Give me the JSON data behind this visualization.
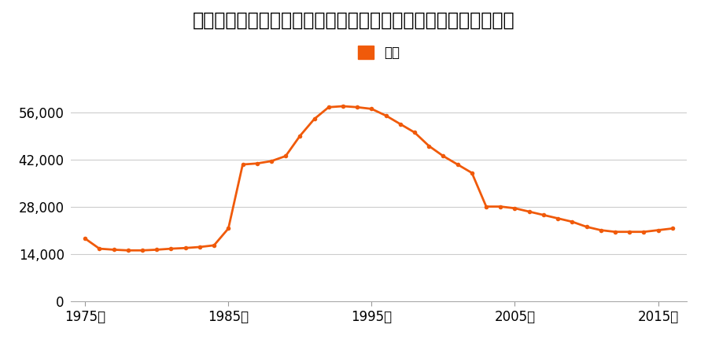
{
  "title": "茨城県日立市滑川町字祝サキ１９４３番１ほか１０筆の地価推移",
  "legend_label": "価格",
  "line_color": "#f05a0a",
  "marker_color": "#f05a0a",
  "bg_color": "#ffffff",
  "years": [
    1975,
    1976,
    1977,
    1978,
    1979,
    1980,
    1981,
    1982,
    1983,
    1984,
    1985,
    1986,
    1987,
    1988,
    1989,
    1990,
    1991,
    1992,
    1993,
    1994,
    1995,
    1996,
    1997,
    1998,
    1999,
    2000,
    2001,
    2002,
    2003,
    2004,
    2005,
    2006,
    2007,
    2008,
    2009,
    2010,
    2011,
    2012,
    2013,
    2014,
    2015,
    2016
  ],
  "values": [
    18500,
    15500,
    15200,
    15000,
    15000,
    15200,
    15500,
    15700,
    16000,
    16500,
    21500,
    40500,
    40800,
    41500,
    43000,
    49000,
    54000,
    57500,
    57800,
    57500,
    57000,
    55000,
    52500,
    50000,
    46000,
    43000,
    40500,
    38000,
    28000,
    28000,
    27500,
    26500,
    25500,
    24500,
    23500,
    22000,
    21000,
    20500,
    20500,
    20500,
    21000,
    21500
  ],
  "yticks": [
    0,
    14000,
    28000,
    42000,
    56000
  ],
  "xticks": [
    1975,
    1985,
    1995,
    2005,
    2015
  ],
  "ylim": [
    0,
    62000
  ],
  "xlim": [
    1974,
    2017
  ],
  "title_fontsize": 17,
  "axis_fontsize": 12,
  "legend_fontsize": 12,
  "marker_size": 4,
  "line_width": 2.0,
  "grid_color": "#cccccc"
}
